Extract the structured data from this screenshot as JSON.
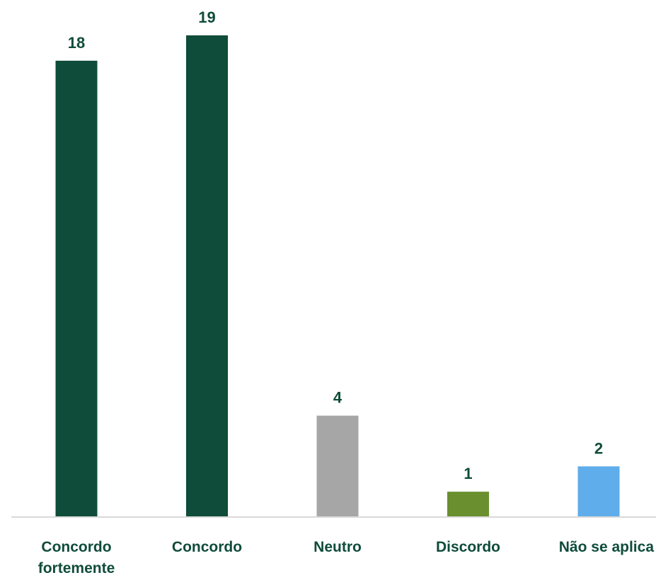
{
  "chart_data": {
    "type": "bar",
    "categories": [
      [
        "Concordo",
        "fortemente"
      ],
      [
        "Concordo"
      ],
      [
        "Neutro"
      ],
      [
        "Discordo"
      ],
      [
        "Não se aplica"
      ]
    ],
    "values": [
      18,
      19,
      4,
      1,
      2
    ],
    "colors": [
      "#0f4c3a",
      "#0f4c3a",
      "#a6a6a6",
      "#6a8f2e",
      "#5fadea"
    ],
    "label_color": "#0f4c3a",
    "axis_color": "#d9d9d9",
    "ylim": [
      0,
      19
    ],
    "grid": false,
    "title": "",
    "xlabel": "",
    "ylabel": ""
  }
}
